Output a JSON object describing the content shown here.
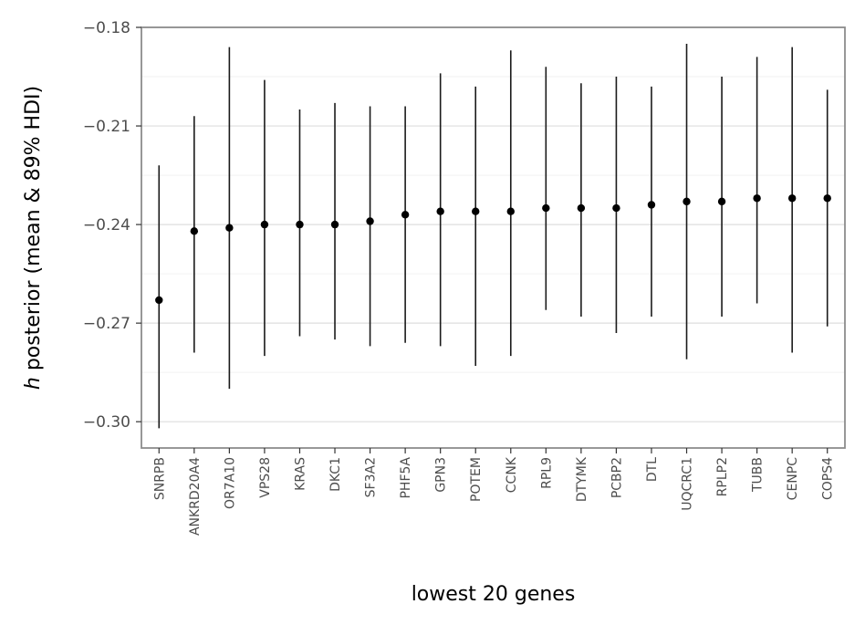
{
  "chart_data": {
    "type": "pointrange",
    "xlabel": "lowest 20 genes",
    "ylabel_italic": "h",
    "ylabel_rest": " posterior (mean & 89% HDI)",
    "ylim": [
      -0.308,
      -0.18
    ],
    "yticks": [
      -0.18,
      -0.21,
      -0.24,
      -0.27,
      -0.3
    ],
    "ytick_labels": [
      "−0.18",
      "−0.21",
      "−0.24",
      "−0.27",
      "−0.30"
    ],
    "y_minor_ticks": [
      -0.195,
      -0.225,
      -0.255,
      -0.285
    ],
    "grid": true,
    "categories": [
      "SNRPB",
      "ANKRD20A4",
      "OR7A10",
      "VPS28",
      "KRAS",
      "DKC1",
      "SF3A2",
      "PHF5A",
      "GPN3",
      "POTEM",
      "CCNK",
      "RPL9",
      "DTYMK",
      "PCBP2",
      "DTL",
      "UQCRC1",
      "RPLP2",
      "TUBB",
      "CENPC",
      "COPS4"
    ],
    "mean": [
      -0.263,
      -0.242,
      -0.241,
      -0.24,
      -0.24,
      -0.24,
      -0.239,
      -0.237,
      -0.236,
      -0.236,
      -0.236,
      -0.235,
      -0.235,
      -0.235,
      -0.234,
      -0.233,
      -0.233,
      -0.232,
      -0.232,
      -0.232
    ],
    "lower": [
      -0.302,
      -0.279,
      -0.29,
      -0.28,
      -0.274,
      -0.275,
      -0.277,
      -0.276,
      -0.277,
      -0.283,
      -0.28,
      -0.266,
      -0.268,
      -0.273,
      -0.268,
      -0.281,
      -0.268,
      -0.264,
      -0.279,
      -0.271
    ],
    "upper": [
      -0.222,
      -0.207,
      -0.186,
      -0.196,
      -0.205,
      -0.203,
      -0.204,
      -0.204,
      -0.194,
      -0.198,
      -0.187,
      -0.192,
      -0.197,
      -0.195,
      -0.198,
      -0.185,
      -0.195,
      -0.189,
      -0.186,
      -0.199
    ],
    "colors": {
      "mark": "#000000",
      "interval": "#1a1a1a",
      "grid_major": "#dedede",
      "grid_minor": "#f2f2f2",
      "frame": "#8c8c8c"
    }
  }
}
